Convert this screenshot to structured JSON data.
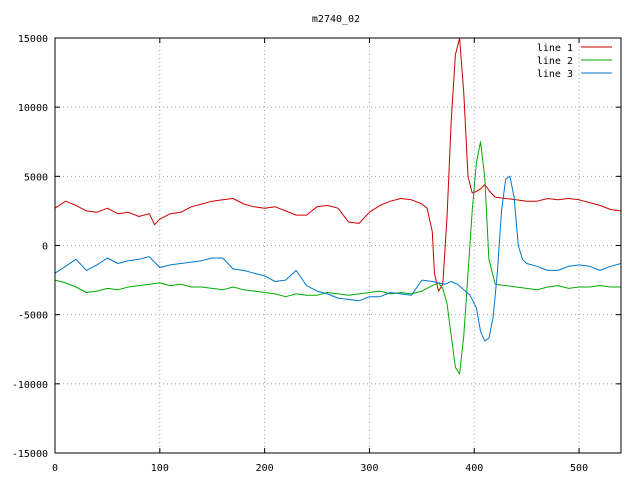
{
  "chart_data": {
    "type": "line",
    "title": "m2740_02",
    "xlabel": "",
    "ylabel": "",
    "xlim": [
      0,
      540
    ],
    "ylim": [
      -15000,
      15000
    ],
    "x_ticks": [
      0,
      100,
      200,
      300,
      400,
      500
    ],
    "y_ticks": [
      -15000,
      -10000,
      -5000,
      0,
      5000,
      10000,
      15000
    ],
    "grid": true,
    "legend_position": "top-right",
    "series": [
      {
        "name": "line 1",
        "color": "#cc0000",
        "x": [
          0,
          10,
          20,
          30,
          40,
          50,
          60,
          70,
          80,
          90,
          95,
          100,
          110,
          120,
          130,
          140,
          150,
          160,
          170,
          180,
          190,
          200,
          210,
          220,
          230,
          240,
          250,
          260,
          270,
          280,
          290,
          300,
          310,
          320,
          330,
          340,
          350,
          355,
          360,
          362,
          366,
          370,
          374,
          378,
          382,
          386,
          390,
          394,
          398,
          402,
          406,
          410,
          416,
          420,
          430,
          440,
          450,
          460,
          470,
          480,
          490,
          500,
          510,
          520,
          530,
          540
        ],
        "y": [
          2700,
          3200,
          2900,
          2500,
          2400,
          2700,
          2300,
          2400,
          2100,
          2300,
          1500,
          1900,
          2300,
          2400,
          2800,
          3000,
          3200,
          3300,
          3400,
          3000,
          2800,
          2700,
          2800,
          2500,
          2200,
          2200,
          2800,
          2900,
          2700,
          1700,
          1600,
          2400,
          2900,
          3200,
          3400,
          3300,
          3000,
          2700,
          1000,
          -2000,
          -3300,
          -2800,
          2000,
          9000,
          13800,
          15000,
          11000,
          5000,
          3800,
          3900,
          4100,
          4400,
          3800,
          3500,
          3400,
          3300,
          3200,
          3200,
          3400,
          3300,
          3400,
          3300,
          3100,
          2900,
          2600,
          2500
        ]
      },
      {
        "name": "line 2",
        "color": "#00aa00",
        "x": [
          0,
          10,
          20,
          30,
          40,
          50,
          60,
          70,
          80,
          90,
          100,
          110,
          120,
          130,
          140,
          150,
          160,
          170,
          180,
          190,
          200,
          210,
          220,
          230,
          240,
          250,
          260,
          270,
          280,
          290,
          300,
          310,
          320,
          330,
          340,
          350,
          360,
          366,
          370,
          374,
          378,
          382,
          386,
          390,
          394,
          398,
          402,
          406,
          410,
          414,
          420,
          430,
          440,
          450,
          460,
          470,
          480,
          490,
          500,
          510,
          520,
          530,
          540
        ],
        "y": [
          -2500,
          -2700,
          -3000,
          -3400,
          -3300,
          -3100,
          -3200,
          -3000,
          -2900,
          -2800,
          -2700,
          -2900,
          -2800,
          -3000,
          -3000,
          -3100,
          -3200,
          -3000,
          -3200,
          -3300,
          -3400,
          -3500,
          -3700,
          -3500,
          -3600,
          -3600,
          -3400,
          -3500,
          -3600,
          -3500,
          -3400,
          -3300,
          -3500,
          -3400,
          -3500,
          -3300,
          -2900,
          -2700,
          -3100,
          -4200,
          -6500,
          -8800,
          -9300,
          -6500,
          -2000,
          2500,
          6000,
          7500,
          5000,
          -1000,
          -2800,
          -2900,
          -3000,
          -3100,
          -3200,
          -3000,
          -2900,
          -3100,
          -3000,
          -3000,
          -2900,
          -3000,
          -3000
        ]
      },
      {
        "name": "line 3",
        "color": "#0077cc",
        "x": [
          0,
          10,
          20,
          30,
          40,
          50,
          60,
          70,
          80,
          90,
          100,
          110,
          120,
          130,
          140,
          150,
          160,
          170,
          180,
          190,
          200,
          210,
          220,
          230,
          240,
          250,
          260,
          270,
          280,
          290,
          300,
          310,
          320,
          330,
          340,
          350,
          360,
          366,
          372,
          378,
          384,
          390,
          396,
          402,
          406,
          410,
          414,
          418,
          422,
          426,
          430,
          434,
          438,
          442,
          446,
          450,
          460,
          470,
          480,
          490,
          500,
          510,
          520,
          530,
          540
        ],
        "y": [
          -2000,
          -1500,
          -1000,
          -1800,
          -1400,
          -900,
          -1300,
          -1100,
          -1000,
          -800,
          -1600,
          -1400,
          -1300,
          -1200,
          -1100,
          -900,
          -900,
          -1700,
          -1800,
          -2000,
          -2200,
          -2600,
          -2500,
          -1800,
          -2900,
          -3300,
          -3500,
          -3800,
          -3900,
          -4000,
          -3700,
          -3700,
          -3400,
          -3500,
          -3600,
          -2500,
          -2600,
          -2700,
          -2800,
          -2600,
          -2800,
          -3200,
          -3600,
          -4500,
          -6200,
          -6900,
          -6700,
          -5200,
          -2000,
          2500,
          4800,
          5000,
          3500,
          0,
          -1000,
          -1300,
          -1500,
          -1800,
          -1800,
          -1500,
          -1400,
          -1500,
          -1800,
          -1500,
          -1300
        ]
      }
    ]
  }
}
